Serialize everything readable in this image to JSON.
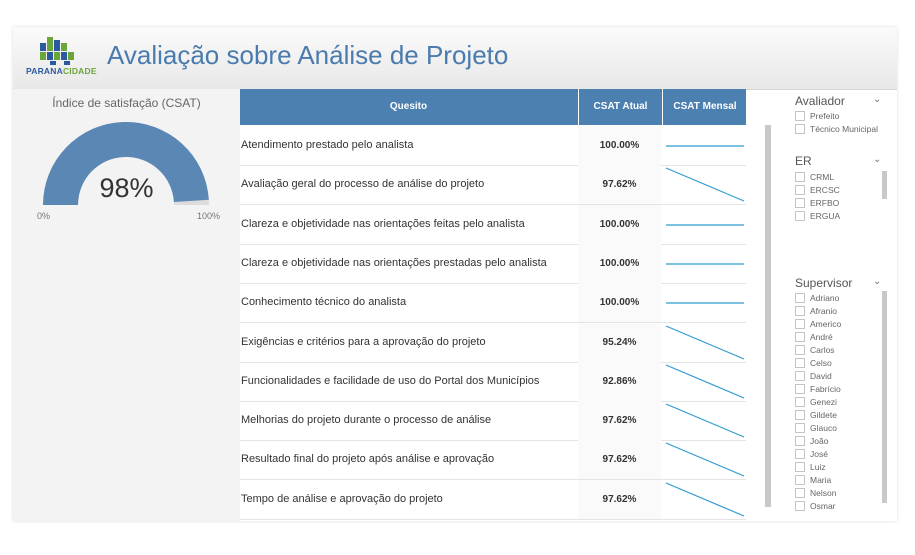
{
  "header": {
    "logo_part1": "PARANA",
    "logo_part2": "CIDADE",
    "title": "Avaliação sobre Análise de Projeto"
  },
  "gauge": {
    "title": "Índice de satisfação (CSAT)",
    "value_label": "98%",
    "value_fraction": 0.98,
    "min_label": "0%",
    "max_label": "100%",
    "color": "#5b87b5"
  },
  "table": {
    "headers": {
      "quesito": "Quesito",
      "atual": "CSAT Atual",
      "mensal": "CSAT Mensal"
    },
    "rows": [
      {
        "quesito": "Atendimento prestado pelo analista",
        "atual": "100.00%",
        "trend": "flat"
      },
      {
        "quesito": "Avaliação geral do processo de análise do projeto",
        "atual": "97.62%",
        "trend": "down"
      },
      {
        "quesito": "Clareza e objetividade nas orientações feitas pelo analista",
        "atual": "100.00%",
        "trend": "flat"
      },
      {
        "quesito": "Clareza e objetividade nas orientações prestadas pelo analista",
        "atual": "100.00%",
        "trend": "flat"
      },
      {
        "quesito": "Conhecimento técnico do analista",
        "atual": "100.00%",
        "trend": "flat"
      },
      {
        "quesito": "Exigências e critérios para a aprovação do projeto",
        "atual": "95.24%",
        "trend": "down"
      },
      {
        "quesito": "Funcionalidades e facilidade de uso do Portal dos Municípios",
        "atual": "92.86%",
        "trend": "down"
      },
      {
        "quesito": "Melhorias do projeto durante o processo de análise",
        "atual": "97.62%",
        "trend": "down"
      },
      {
        "quesito": "Resultado final do projeto após análise e aprovação",
        "atual": "97.62%",
        "trend": "down"
      },
      {
        "quesito": "Tempo de análise e aprovação do projeto",
        "atual": "97.62%",
        "trend": "down"
      }
    ],
    "header_color": "#4c80b0",
    "sparkline_color": "#2e9bd0"
  },
  "slicers": {
    "avaliador": {
      "title": "Avaliador",
      "options": [
        "Prefeito",
        "Técnico Municipal"
      ]
    },
    "er": {
      "title": "ER",
      "options": [
        "CRML",
        "ERCSC",
        "ERFBO",
        "ERGUA"
      ]
    },
    "supervisor": {
      "title": "Supervisor",
      "options": [
        "Adriano",
        "Afranio",
        "Americo",
        "André",
        "Carlos",
        "Celso",
        "David",
        "Fabrício",
        "Genezi",
        "Gildete",
        "Glauco",
        "João",
        "José",
        "Luiz",
        "Maria",
        "Nelson",
        "Osmar"
      ]
    }
  }
}
